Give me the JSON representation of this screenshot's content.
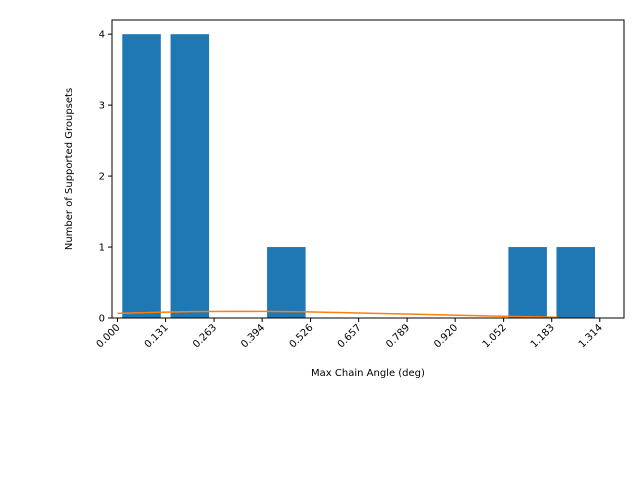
{
  "chart_data": {
    "type": "bar",
    "title": "",
    "xlabel": "Max Chain Angle (deg)",
    "ylabel": "Number of Supported Groupsets",
    "xlim": [
      -0.015,
      1.38
    ],
    "ylim": [
      0,
      4.2
    ],
    "grid": false,
    "bar_width": 0.105,
    "x_ticks": [
      0.0,
      0.131,
      0.263,
      0.394,
      0.526,
      0.657,
      0.789,
      0.92,
      1.052,
      1.183,
      1.314
    ],
    "x_tick_labels": [
      "0.000",
      "0.131",
      "0.263",
      "0.394",
      "0.526",
      "0.657",
      "0.789",
      "0.920",
      "1.052",
      "1.183",
      "1.314"
    ],
    "y_ticks": [
      0,
      1,
      2,
      3,
      4
    ],
    "y_tick_labels": [
      "0",
      "1",
      "2",
      "3",
      "4"
    ],
    "bars": [
      {
        "x": 0.0655,
        "value": 4
      },
      {
        "x": 0.197,
        "value": 4
      },
      {
        "x": 0.46,
        "value": 1
      },
      {
        "x": 1.1175,
        "value": 1
      },
      {
        "x": 1.2485,
        "value": 1
      }
    ],
    "series": [
      {
        "type": "line",
        "x": [
          0.0,
          0.1,
          0.2,
          0.3,
          0.4,
          0.5,
          0.6,
          0.7,
          0.8,
          0.9,
          1.0,
          1.1,
          1.2
        ],
        "y": [
          0.065,
          0.08,
          0.09,
          0.093,
          0.093,
          0.088,
          0.078,
          0.066,
          0.054,
          0.042,
          0.03,
          0.02,
          0.01
        ]
      }
    ],
    "colors": {
      "bar": "#1f77b4",
      "line": "#ff7f0e"
    }
  }
}
